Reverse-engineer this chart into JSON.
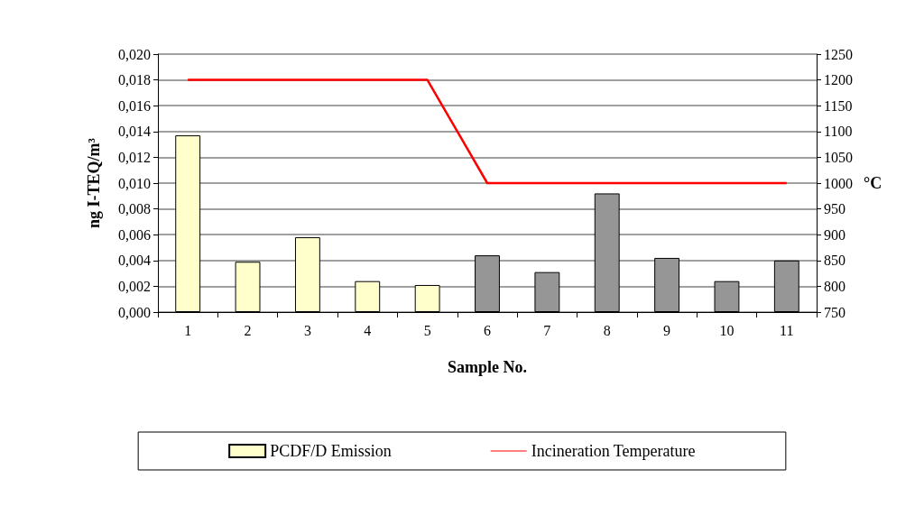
{
  "chart_data": {
    "type": "bar",
    "xlabel": "Sample No.",
    "ylabel": "ng I-TEQ/m³",
    "y2label": "°C",
    "categories": [
      "1",
      "2",
      "3",
      "4",
      "5",
      "6",
      "7",
      "8",
      "9",
      "10",
      "11"
    ],
    "series": [
      {
        "name": "PCDF/D Emission",
        "color": "#ffffcc",
        "colors": [
          "#ffffcc",
          "#ffffcc",
          "#ffffcc",
          "#ffffcc",
          "#ffffcc",
          "#969696",
          "#969696",
          "#969696",
          "#969696",
          "#969696",
          "#969696"
        ],
        "values": [
          0.0137,
          0.0039,
          0.0058,
          0.0024,
          0.0021,
          0.0044,
          0.0031,
          0.0092,
          0.0042,
          0.0024,
          0.004
        ]
      },
      {
        "name": "Incineration Temperature",
        "type": "line",
        "axis": "y2",
        "color": "#ff0000",
        "values": [
          1200,
          1200,
          1200,
          1200,
          1200,
          1000,
          1000,
          1000,
          1000,
          1000,
          1000
        ]
      }
    ],
    "ylim": [
      0,
      0.02
    ],
    "yticks": [
      {
        "value": 0,
        "label": "0,000"
      },
      {
        "value": 0.002,
        "label": "0,002"
      },
      {
        "value": 0.004,
        "label": "0,004"
      },
      {
        "value": 0.006,
        "label": "0,006"
      },
      {
        "value": 0.008,
        "label": "0,008"
      },
      {
        "value": 0.01,
        "label": "0,010"
      },
      {
        "value": 0.012,
        "label": "0,012"
      },
      {
        "value": 0.014,
        "label": "0,014"
      },
      {
        "value": 0.016,
        "label": "0,016"
      },
      {
        "value": 0.018,
        "label": "0,018"
      },
      {
        "value": 0.02,
        "label": "0,020"
      }
    ],
    "y2lim": [
      750,
      1250
    ],
    "y2ticks": [
      750,
      800,
      850,
      900,
      950,
      1000,
      1050,
      1100,
      1150,
      1200,
      1250
    ],
    "grid": "y",
    "legend": "bottom",
    "marker": "none",
    "line_style": "solid"
  }
}
